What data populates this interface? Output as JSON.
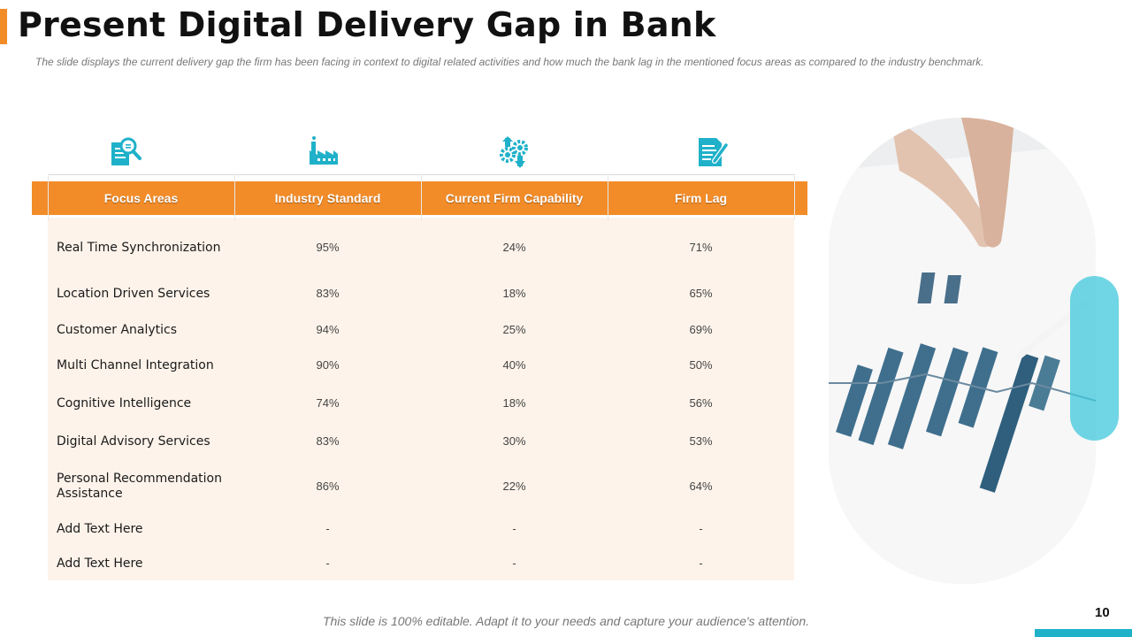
{
  "title": "Present Digital Delivery Gap in Bank",
  "subtitle": "The slide displays the current delivery  gap the firm has been facing in context to digital related activities and how much the bank lag in the mentioned focus areas as compared  to the industry benchmark.",
  "icons": [
    "analysis-icon",
    "factory-icon",
    "gears-icon",
    "edit-document-icon"
  ],
  "table": {
    "headers": [
      "Focus Areas",
      "Industry Standard",
      "Current Firm Capability",
      "Firm Lag"
    ],
    "rows": [
      {
        "area": "Real Time Synchronization",
        "standard": "95%",
        "capability": "24%",
        "lag": "71%"
      },
      {
        "area": "Location Driven Services",
        "standard": "83%",
        "capability": "18%",
        "lag": "65%"
      },
      {
        "area": "Customer Analytics",
        "standard": "94%",
        "capability": "25%",
        "lag": "69%"
      },
      {
        "area": "Multi Channel Integration",
        "standard": "90%",
        "capability": "40%",
        "lag": "50%"
      },
      {
        "area": "Cognitive Intelligence",
        "standard": "74%",
        "capability": "18%",
        "lag": "56%"
      },
      {
        "area": "Digital Advisory Services",
        "standard": "83%",
        "capability": "30%",
        "lag": "53%"
      },
      {
        "area": "Personal Recommendation Assistance",
        "standard": "86%",
        "capability": "22%",
        "lag": "64%"
      },
      {
        "area": "Add Text Here",
        "standard": "-",
        "capability": "-",
        "lag": "-"
      },
      {
        "area": "Add Text Here",
        "standard": "-",
        "capability": "-",
        "lag": "-"
      }
    ]
  },
  "footer": "This slide is 100% editable.  Adapt it to your needs and capture your audience's attention.",
  "page_number": "10",
  "colors": {
    "accent": "#f28c28",
    "icon": "#1fb1c9",
    "table_bg": "#fdf3ea"
  }
}
